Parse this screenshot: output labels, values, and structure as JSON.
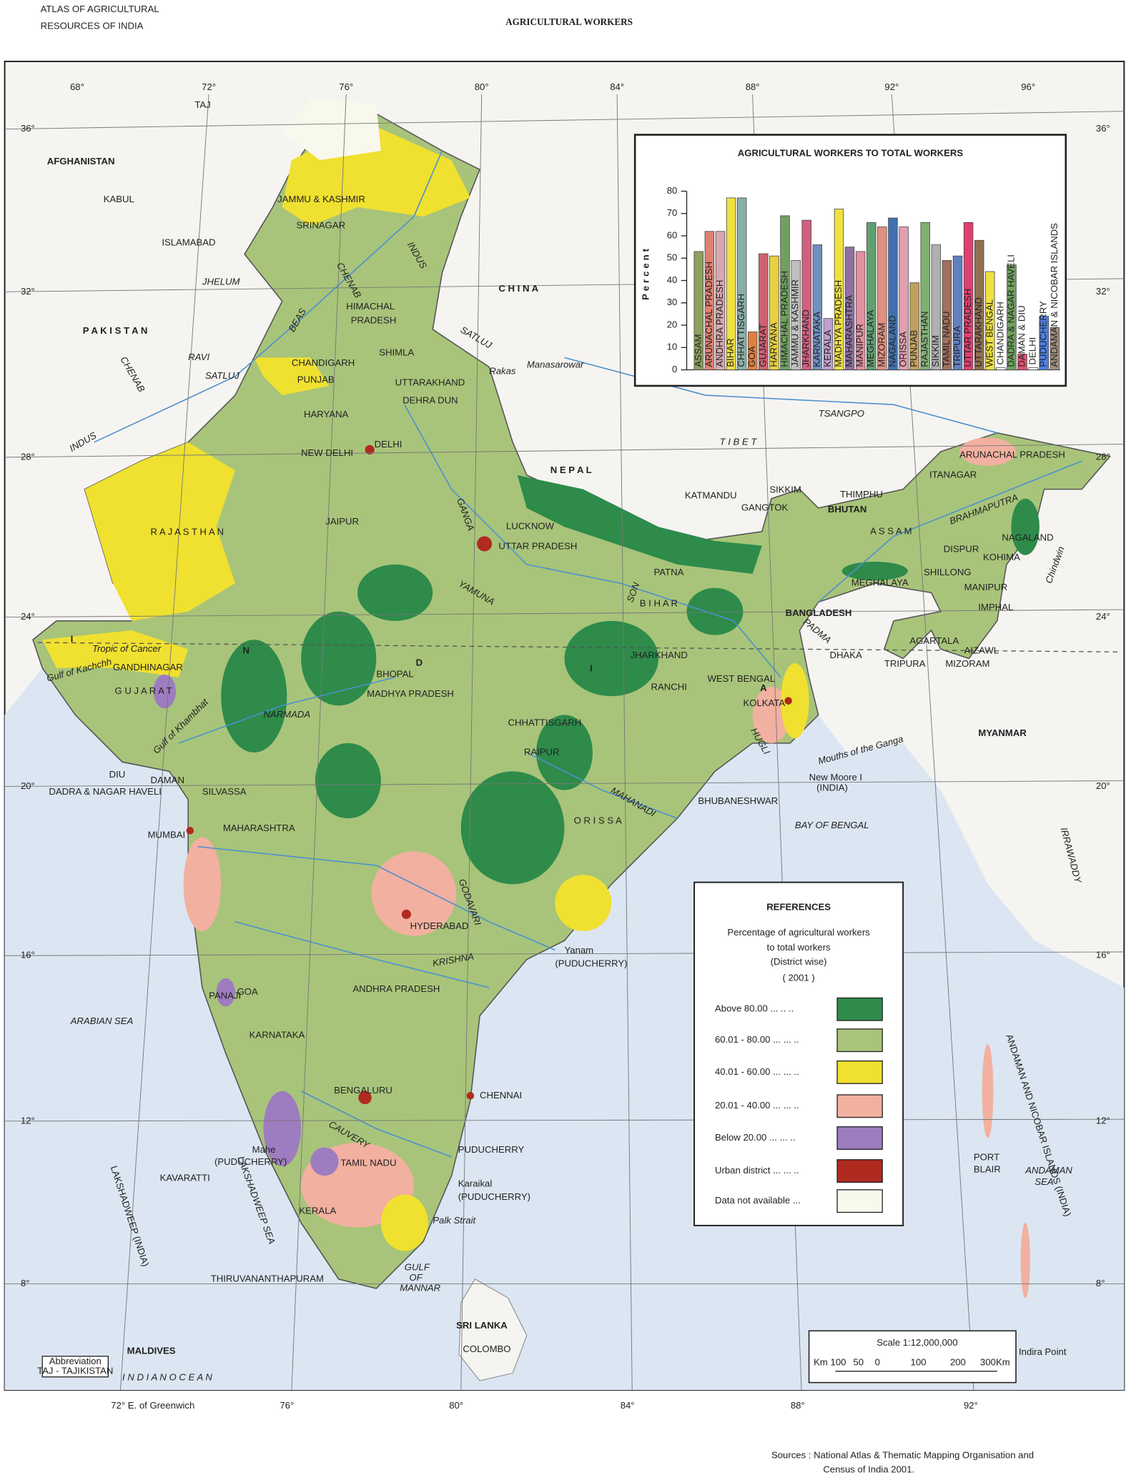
{
  "header": {
    "atlas": [
      "ATLAS OF AGRICULTURAL",
      "RESOURCES OF INDIA"
    ],
    "title": "AGRICULTURAL WORKERS"
  },
  "graticule": {
    "top": [
      "68°",
      "72°",
      "76°",
      "80°",
      "84°",
      "88°",
      "92°",
      "96°"
    ],
    "bottom": [
      "72° E. of Greenwich",
      "76°",
      "80°",
      "84°",
      "88°",
      "92°"
    ],
    "left": [
      "36°",
      "32°",
      "28°",
      "24°",
      "20°",
      "16°",
      "12°",
      "8°"
    ],
    "right": [
      "36°",
      "32°",
      "28°",
      "24°",
      "20°",
      "16°",
      "12°",
      "8°"
    ]
  },
  "map": {
    "countries": [
      "AFGHANISTAN",
      "P A K I S T A N",
      "C H I N A",
      "N E P A L",
      "T I B E T",
      "BHUTAN",
      "BANGLADESH",
      "MYANMAR",
      "SRI LANKA",
      "MALDIVES"
    ],
    "india_letters": [
      "I",
      "N",
      "D",
      "I",
      "A"
    ],
    "states": [
      "JAMMU & KASHMIR",
      "HIMACHAL",
      "PRADESH",
      "PUNJAB",
      "HARYANA",
      "UTTARAKHAND",
      "DELHI",
      "R A J A S T H A N",
      "UTTAR PRADESH",
      "B I H A R",
      "JHARKHAND",
      "WEST BENGAL",
      "SIKKIM",
      "ARUNACHAL PRADESH",
      "A S S A M",
      "NAGALAND",
      "MEGHALAYA",
      "MANIPUR",
      "TRIPURA",
      "MIZORAM",
      "G U J A R A T",
      "MADHYA PRADESH",
      "CHHATTISGARH",
      "O R I S S A",
      "MAHARASHTRA",
      "ANDHRA PRADESH",
      "KARNATAKA",
      "TAMIL NADU",
      "KERALA",
      "GOA",
      "DADRA & NAGAR HAVELI",
      "DAMAN",
      "DIU",
      "CHANDIGARH",
      "ANDAMAN AND NICOBAR ISLANDS (INDIA)",
      "LAKSHADWEEP (INDIA)"
    ],
    "cities": [
      "KABUL",
      "ISLAMABAD",
      "SRINAGAR",
      "SHIMLA",
      "DEHRA DUN",
      "NEW DELHI",
      "JAIPUR",
      "LUCKNOW",
      "PATNA",
      "KATMANDU",
      "GANGTOK",
      "THIMPHU",
      "ITANAGAR",
      "DISPUR",
      "SHILLONG",
      "KOHIMA",
      "IMPHAL",
      "AGARTALA",
      "AIZAWL",
      "DHAKA",
      "KOLKATA",
      "RANCHI",
      "BHOPAL",
      "GANDHINAGAR",
      "RAIPUR",
      "BHUBANESHWAR",
      "SILVASSA",
      "MUMBAI",
      "HYDERABAD",
      "PANAJI",
      "BENGALURU",
      "CHENNAI",
      "PUDUCHERRY",
      "KAVARATTI",
      "THIRUVANANTHAPURAM",
      "COLOMBO",
      "PORT",
      "BLAIR",
      "Yanam",
      "(PUDUCHERRY)",
      "Mahe",
      "(PUDUCHERRY)",
      "Karaikal",
      "(PUDUCHERRY)",
      "New Moore I",
      "(INDIA)",
      "Indira Point",
      "TAJ"
    ],
    "water": [
      "ARABIAN SEA",
      "BAY OF BENGAL",
      "I N D I A N   O C E A N",
      "ANDAMAN",
      "SEA",
      "LAKSHADWEEP SEA",
      "GULF",
      "OF",
      "MANNAR",
      "Palk Strait",
      "Gulf of Kachchh",
      "Gulf of Khambhat",
      "Mouths of the Ganga",
      "Tropic of Cancer"
    ],
    "rivers": [
      "INDUS",
      "INDUS",
      "JHELUM",
      "CHENAB",
      "CHENAB",
      "RAVI",
      "SATLUJ",
      "SATLUJ",
      "BEAS",
      "GANGA",
      "YAMUNA",
      "SON",
      "NARMADA",
      "MAHANADI",
      "GODAVARI",
      "KRISHNA",
      "CAUVERY",
      "HUGLI",
      "BRAHMAPUTRA",
      "TSANGPO",
      "PADMA",
      "Chindwin",
      "IRRAWADDY",
      "Rakas",
      "Manasarowar"
    ]
  },
  "legend": {
    "title": "REFERENCES",
    "description": [
      "Percentage of agricultural workers",
      "to total workers",
      "(District wise)",
      "( 2001 )"
    ],
    "items": [
      {
        "label": "Above 80.00 ... .. ..",
        "color": "#2e8b4a"
      },
      {
        "label": "60.01 - 80.00 ... ... ..",
        "color": "#a8c47a"
      },
      {
        "label": "40.01 - 60.00 ... ... ..",
        "color": "#f0e030"
      },
      {
        "label": "20.01 - 40.00 ... ... ..",
        "color": "#f2b0a0"
      },
      {
        "label": "Below 20.00 ... ... ..",
        "color": "#9e7cc0"
      },
      {
        "label": "Urban district ... ... ..",
        "color": "#b02a20"
      },
      {
        "label": "Data not available ...",
        "color": "#f8f8ec"
      }
    ]
  },
  "scale": {
    "title": "Scale 1:12,000,000",
    "ticks": [
      "Km 100",
      "50",
      "0",
      "100",
      "200",
      "300Km"
    ]
  },
  "abbreviation": [
    "Abbreviation",
    "TAJ - TAJIKISTAN"
  ],
  "sources": [
    "Sources : National Atlas & Thematic Mapping Organisation and",
    "Census of India 2001."
  ],
  "chart_data": {
    "type": "bar",
    "title": "AGRICULTURAL WORKERS TO TOTAL WORKERS",
    "ylabel": "Percent",
    "categories": [
      "ASSAM",
      "ARUNACHAL PRADESH",
      "ANDHRA PRADESH",
      "BIHAR",
      "CHHATTISGARH",
      "GOA",
      "GUJARAT",
      "HARYANA",
      "HIMACHAL PRADESH",
      "JAMMU & KASHMIR",
      "JHARKHAND",
      "KARNATAKA",
      "KERALA",
      "MADHYA PRADESH",
      "MAHARASHTRA",
      "MANIPUR",
      "MEGHALAYA",
      "MIZORAM",
      "NAGALAND",
      "ORISSA",
      "PUNJAB",
      "RAJASTHAN",
      "SIKKIM",
      "TAMIL NADU",
      "TRIPURA",
      "UTTAR PRADESH",
      "UTTARAKHAND",
      "WEST BENGAL",
      "CHANDIGARH",
      "DADRA & NAGAR HAVELI",
      "DAMAN & DIU",
      "DELHI",
      "PUDUCHERRY",
      "ANDAMAN & NICOBAR ISLANDS"
    ],
    "values": [
      53,
      62,
      62,
      77,
      77,
      17,
      52,
      51,
      69,
      49,
      67,
      56,
      23,
      72,
      55,
      53,
      66,
      64,
      68,
      64,
      39,
      66,
      56,
      49,
      51,
      66,
      58,
      44,
      1,
      47,
      7,
      1,
      24,
      19
    ],
    "colors": [
      "#8fa060",
      "#e08070",
      "#d8a8b0",
      "#f0e040",
      "#8ab0a8",
      "#e08040",
      "#d06070",
      "#e8d040",
      "#70a060",
      "#c0c0c0",
      "#d06080",
      "#7090c0",
      "#c0a0d0",
      "#f0e040",
      "#9070a0",
      "#e090a0",
      "#60a070",
      "#e09080",
      "#4070b0",
      "#e0a0b0",
      "#c0a060",
      "#80b070",
      "#b0b0b0",
      "#a07060",
      "#6080c0",
      "#e04070",
      "#907050",
      "#f0e040",
      "#ffffff",
      "#70a060",
      "#e05070",
      "#ffffff",
      "#5080e0",
      "#a09080"
    ],
    "ylim": [
      0,
      80
    ],
    "yticks": [
      0,
      10,
      20,
      30,
      40,
      50,
      60,
      70,
      80
    ]
  }
}
